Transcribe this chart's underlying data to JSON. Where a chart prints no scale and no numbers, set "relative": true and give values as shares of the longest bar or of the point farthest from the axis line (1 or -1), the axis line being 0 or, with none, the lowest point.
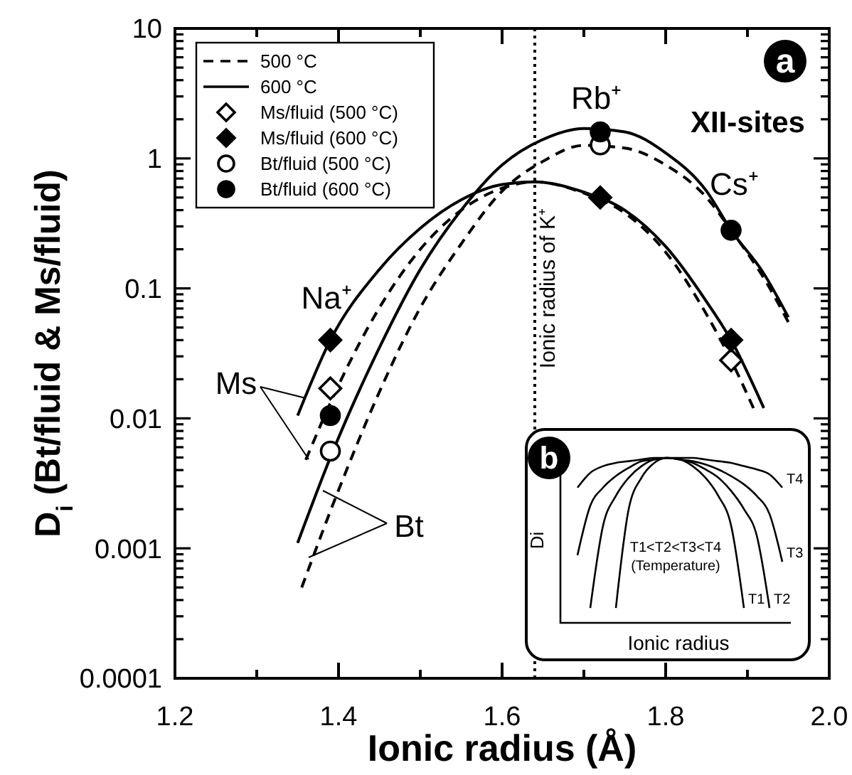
{
  "chart_data": [
    {
      "type": "line",
      "xlabel": "Ionic radius (Å)",
      "ylabel": "D$_{i}$ (Bt/fluid & Ms/fluid)",
      "xlim": [
        1.2,
        2.0
      ],
      "xticks": [
        1.2,
        {
          "value": 1.3,
          "label": null
        },
        1.4,
        {
          "value": 1.5,
          "label": null
        },
        1.6,
        {
          "value": 1.7,
          "label": null
        },
        1.8,
        {
          "value": 1.9,
          "label": null
        },
        {
          "value": 2,
          "label": "2.0"
        }
      ],
      "ylim": [
        0.0001,
        10
      ],
      "yticks": [
        0.0001,
        {
          "value": 0.0002,
          "label": null
        },
        {
          "value": 0.0003,
          "label": null
        },
        {
          "value": 0.0004,
          "label": null
        },
        {
          "value": 0.0005,
          "label": null
        },
        {
          "value": 0.0006,
          "label": null
        },
        {
          "value": 0.0007,
          "label": null
        },
        {
          "value": 0.0008,
          "label": null
        },
        {
          "value": 0.0009,
          "label": null
        },
        0.001,
        {
          "value": 0.002,
          "label": null
        },
        {
          "value": 0.003,
          "label": null
        },
        {
          "value": 0.004,
          "label": null
        },
        {
          "value": 0.005,
          "label": null
        },
        {
          "value": 0.006,
          "label": null
        },
        {
          "value": 0.007,
          "label": null
        },
        {
          "value": 0.008,
          "label": null
        },
        {
          "value": 0.009,
          "label": null
        },
        0.01,
        {
          "value": 0.02,
          "label": null
        },
        {
          "value": 0.03,
          "label": null
        },
        {
          "value": 0.04,
          "label": null
        },
        {
          "value": 0.05,
          "label": null
        },
        {
          "value": 0.06,
          "label": null
        },
        {
          "value": 0.07,
          "label": null
        },
        {
          "value": 0.08,
          "label": null
        },
        {
          "value": 0.09,
          "label": null
        },
        0.1,
        {
          "value": 0.2,
          "label": null
        },
        {
          "value": 0.3,
          "label": null
        },
        {
          "value": 0.4,
          "label": null
        },
        {
          "value": 0.5,
          "label": null
        },
        {
          "value": 0.6,
          "label": null
        },
        {
          "value": 0.7,
          "label": null
        },
        {
          "value": 0.8,
          "label": null
        },
        {
          "value": 0.9,
          "label": null
        },
        1,
        {
          "value": 2,
          "label": null
        },
        {
          "value": 3,
          "label": null
        },
        {
          "value": 4,
          "label": null
        },
        {
          "value": 5,
          "label": null
        },
        {
          "value": 6,
          "label": null
        },
        {
          "value": 7,
          "label": null
        },
        {
          "value": 8,
          "label": null
        },
        {
          "value": 9,
          "label": null
        },
        10
      ],
      "log": "y",
      "legend": "top left",
      "ref_lines": [
        {
          "axis": "x",
          "value": 1.64,
          "label": "Ionic radius of K⁺",
          "line_style": "dotted"
        }
      ],
      "annotations": [
        "XII-sites",
        "a",
        {
          "text": "Na⁺",
          "x": 1.39,
          "y": 0.04
        },
        {
          "text": "Rb⁺",
          "x": 1.72,
          "y": 1.6
        },
        {
          "text": "Cs⁺",
          "x": 1.88,
          "y": 0.28
        },
        {
          "text": "Ms",
          "x": 1.36,
          "y": 0.014
        },
        {
          "text": "Bt",
          "x": 1.38,
          "y": 0.0028
        }
      ],
      "series": [
        {
          "name": "500 °C",
          "line_style": "dashed",
          "color": "#000000",
          "x": [
            1.36,
            1.4,
            1.45,
            1.5,
            1.55,
            1.6,
            1.64,
            1.7,
            1.75,
            1.8,
            1.85,
            1.88,
            1.91
          ],
          "values": [
            0.0048,
            0.018,
            0.071,
            0.2,
            0.4,
            0.59,
            0.66,
            0.54,
            0.38,
            0.19,
            0.063,
            0.028,
            0.011
          ]
        },
        {
          "name": "600 °C",
          "line_style": "solid",
          "color": "#000000",
          "x": [
            1.35,
            1.39,
            1.45,
            1.5,
            1.55,
            1.6,
            1.64,
            1.7,
            1.75,
            1.8,
            1.85,
            1.88,
            1.92
          ],
          "values": [
            0.0105,
            0.04,
            0.14,
            0.29,
            0.48,
            0.63,
            0.66,
            0.55,
            0.4,
            0.21,
            0.079,
            0.04,
            0.012
          ]
        },
        {
          "line_style": "dashed",
          "color": "#000000",
          "x": [
            1.355,
            1.4,
            1.45,
            1.5,
            1.55,
            1.6,
            1.65,
            1.7,
            1.75,
            1.8,
            1.85,
            1.88,
            1.92,
            1.95
          ],
          "values": [
            0.0005,
            0.0028,
            0.016,
            0.071,
            0.22,
            0.56,
            0.95,
            1.26,
            1.2,
            0.89,
            0.5,
            0.28,
            0.12,
            0.055
          ]
        },
        {
          "line_style": "solid",
          "color": "#000000",
          "x": [
            1.35,
            1.39,
            1.45,
            1.5,
            1.55,
            1.6,
            1.65,
            1.7,
            1.75,
            1.8,
            1.85,
            1.88,
            1.92,
            1.95
          ],
          "values": [
            0.0011,
            0.005,
            0.035,
            0.14,
            0.4,
            0.89,
            1.4,
            1.7,
            1.6,
            1.1,
            0.56,
            0.28,
            0.13,
            0.06
          ]
        },
        {
          "name": "Ms/fluid (500 °C)",
          "type": "scatter",
          "marker": "diamond",
          "color": "#ffffff",
          "x": [
            1.39,
            1.88
          ],
          "values": [
            0.017,
            0.028
          ]
        },
        {
          "name": "Ms/fluid (600 °C)",
          "type": "scatter",
          "marker": "diamond",
          "color": "#000000",
          "x": [
            1.39,
            1.72,
            1.88
          ],
          "values": [
            0.04,
            0.5,
            0.04
          ]
        },
        {
          "name": "Bt/fluid (500 °C)",
          "type": "scatter",
          "marker": "circle",
          "color": "#ffffff",
          "x": [
            1.39,
            1.72
          ],
          "values": [
            0.0056,
            1.27
          ]
        },
        {
          "name": "Bt/fluid (600 °C)",
          "type": "scatter",
          "marker": "circle",
          "color": "#000000",
          "x": [
            1.39,
            1.72,
            1.88
          ],
          "values": [
            0.0105,
            1.6,
            0.28
          ]
        }
      ]
    },
    {
      "type": "line",
      "relative": true,
      "xlabel": "Ionic radius",
      "ylabel": "Di",
      "categories": [
        null,
        null,
        null,
        null,
        null,
        null,
        null,
        null,
        null,
        null,
        null,
        null,
        null,
        null,
        null,
        null,
        null,
        null,
        null
      ],
      "annotations": [
        "b",
        "T1<T2<T3<T4",
        "(Temperature)"
      ],
      "series": [
        {
          "name": "T1",
          "color": "#000000",
          "values": [
            null,
            null,
            null,
            null,
            0.09,
            0.69,
            0.88,
            0.97,
            1,
            0.99,
            0.95,
            0.88,
            0.77,
            0.59,
            0.09,
            null,
            null,
            null,
            null
          ]
        },
        {
          "name": "T2",
          "color": "#000000",
          "values": [
            null,
            null,
            0.09,
            0.59,
            0.77,
            0.88,
            0.95,
            0.99,
            1,
            0.99,
            0.97,
            0.93,
            0.88,
            0.8,
            0.69,
            0.53,
            0.09,
            null,
            null
          ]
        },
        {
          "name": "T3",
          "color": "#000000",
          "values": [
            null,
            0.41,
            0.71,
            0.82,
            0.89,
            0.94,
            0.98,
            0.99,
            1,
            0.99,
            0.98,
            0.96,
            0.93,
            0.89,
            0.84,
            0.77,
            0.66,
            0.37,
            null
          ]
        },
        {
          "name": "T4",
          "color": "#000000",
          "values": [
            null,
            0.82,
            0.91,
            0.95,
            0.97,
            0.98,
            0.99,
            1,
            1,
            1,
            1,
            0.99,
            0.98,
            0.97,
            0.95,
            0.93,
            0.9,
            0.82,
            null
          ]
        }
      ]
    }
  ]
}
